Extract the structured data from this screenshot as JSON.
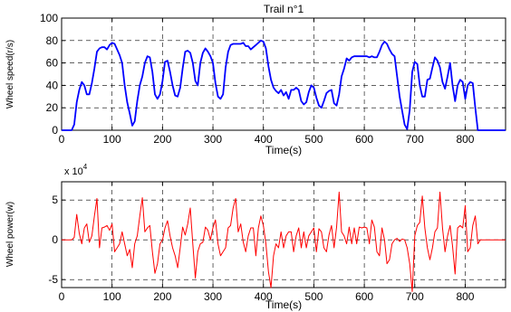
{
  "chart_data": [
    {
      "type": "line",
      "title": "Trail n°1",
      "xlabel": "Time(s)",
      "ylabel": "Wheel speed(r/s)",
      "xlim": [
        0,
        880
      ],
      "ylim": [
        0,
        100
      ],
      "xticks": [
        0,
        100,
        200,
        300,
        400,
        500,
        600,
        700,
        800
      ],
      "yticks": [
        0,
        20,
        40,
        60,
        80,
        100
      ],
      "grid": true,
      "series": [
        {
          "color": "#0000ff",
          "x": [
            0,
            10,
            15,
            20,
            25,
            30,
            35,
            40,
            45,
            50,
            55,
            60,
            65,
            70,
            75,
            80,
            85,
            90,
            95,
            100,
            105,
            110,
            115,
            120,
            125,
            130,
            135,
            140,
            145,
            150,
            155,
            160,
            165,
            170,
            175,
            180,
            185,
            190,
            195,
            200,
            205,
            210,
            215,
            220,
            225,
            230,
            235,
            240,
            245,
            250,
            255,
            260,
            265,
            270,
            275,
            280,
            285,
            290,
            295,
            300,
            305,
            310,
            315,
            320,
            325,
            330,
            335,
            340,
            345,
            350,
            355,
            360,
            365,
            370,
            375,
            380,
            385,
            390,
            395,
            400,
            405,
            410,
            415,
            420,
            425,
            430,
            435,
            440,
            445,
            450,
            455,
            460,
            465,
            470,
            475,
            480,
            485,
            490,
            495,
            500,
            505,
            510,
            515,
            520,
            525,
            530,
            535,
            540,
            545,
            550,
            555,
            560,
            565,
            570,
            575,
            580,
            585,
            590,
            595,
            600,
            605,
            610,
            615,
            620,
            625,
            630,
            635,
            640,
            645,
            650,
            655,
            660,
            665,
            670,
            675,
            680,
            685,
            690,
            695,
            700,
            705,
            710,
            715,
            720,
            725,
            730,
            735,
            740,
            745,
            750,
            755,
            760,
            765,
            770,
            775,
            780,
            785,
            790,
            795,
            800,
            805,
            810,
            815,
            820,
            825,
            830,
            840,
            850,
            860,
            870,
            880
          ],
          "y": [
            0,
            0,
            0,
            0,
            5,
            25,
            36,
            43,
            40,
            32,
            32,
            42,
            55,
            70,
            73,
            74,
            74,
            72,
            76,
            78,
            77,
            72,
            67,
            60,
            40,
            25,
            15,
            4,
            8,
            26,
            40,
            48,
            60,
            66,
            65,
            52,
            32,
            28,
            32,
            44,
            61,
            62,
            52,
            40,
            31,
            30,
            38,
            55,
            70,
            71,
            69,
            60,
            44,
            40,
            60,
            69,
            73,
            70,
            66,
            60,
            42,
            30,
            28,
            32,
            56,
            70,
            76,
            77,
            77,
            77,
            77,
            78,
            75,
            75,
            72,
            74,
            76,
            78,
            80,
            79,
            73,
            57,
            45,
            38,
            35,
            33,
            36,
            31,
            34,
            28,
            36,
            36,
            38,
            36,
            26,
            23,
            25,
            34,
            40,
            38,
            29,
            22,
            20,
            26,
            33,
            35,
            36,
            24,
            22,
            32,
            48,
            55,
            64,
            62,
            65,
            66,
            66,
            66,
            66,
            66,
            66,
            65,
            66,
            65,
            65,
            70,
            76,
            79,
            77,
            72,
            68,
            66,
            48,
            30,
            17,
            5,
            1,
            18,
            52,
            61,
            59,
            40,
            30,
            30,
            45,
            46,
            56,
            65,
            62,
            56,
            43,
            37,
            48,
            60,
            40,
            26,
            40,
            45,
            43,
            28,
            40,
            43,
            42,
            20,
            0,
            0,
            0,
            0,
            0,
            0,
            0
          ]
        }
      ]
    },
    {
      "type": "line",
      "title": "",
      "xlabel": "Time(s)",
      "ylabel": "Wheel power(w)",
      "y_multiplier_base": "x 10",
      "y_multiplier_exp": "4",
      "xlim": [
        0,
        880
      ],
      "ylim": [
        -6,
        7.3
      ],
      "xticks": [
        0,
        100,
        200,
        300,
        400,
        500,
        600,
        700,
        800
      ],
      "yticks": [
        -5,
        0,
        5
      ],
      "grid": true,
      "series": [
        {
          "color": "#ff0000",
          "x": [
            0,
            20,
            25,
            30,
            35,
            40,
            45,
            50,
            55,
            60,
            65,
            70,
            75,
            80,
            85,
            90,
            95,
            100,
            105,
            110,
            115,
            120,
            125,
            130,
            135,
            140,
            145,
            150,
            155,
            160,
            165,
            170,
            175,
            180,
            185,
            190,
            195,
            200,
            205,
            210,
            215,
            220,
            225,
            230,
            235,
            240,
            245,
            250,
            255,
            260,
            265,
            270,
            275,
            280,
            285,
            290,
            295,
            300,
            305,
            310,
            315,
            320,
            325,
            330,
            335,
            340,
            345,
            350,
            355,
            360,
            365,
            370,
            375,
            380,
            385,
            390,
            395,
            400,
            405,
            410,
            415,
            420,
            425,
            430,
            435,
            440,
            445,
            450,
            455,
            460,
            465,
            470,
            475,
            480,
            485,
            490,
            495,
            500,
            505,
            510,
            515,
            520,
            525,
            530,
            535,
            540,
            545,
            550,
            555,
            560,
            565,
            570,
            575,
            580,
            585,
            590,
            595,
            600,
            605,
            610,
            615,
            620,
            625,
            630,
            635,
            640,
            645,
            650,
            655,
            660,
            665,
            670,
            675,
            680,
            685,
            690,
            695,
            700,
            705,
            710,
            715,
            720,
            725,
            730,
            735,
            740,
            745,
            750,
            755,
            760,
            765,
            770,
            775,
            780,
            785,
            790,
            795,
            800,
            805,
            810,
            815,
            820,
            825,
            830,
            840,
            850,
            860,
            870,
            880
          ],
          "y": [
            0,
            0,
            0.3,
            3.2,
            0.8,
            -0.5,
            1.5,
            2,
            -0.3,
            0.5,
            3,
            5.2,
            -1,
            1.5,
            1.6,
            1.8,
            1.2,
            2,
            -1.5,
            -1,
            -0.5,
            1,
            -0.5,
            -2,
            -1.2,
            -3.5,
            -0.5,
            0.5,
            3,
            5.3,
            1,
            1.5,
            1.8,
            -1.5,
            -4.2,
            -3,
            -0.5,
            0,
            1.5,
            2.4,
            0.5,
            -1,
            -2,
            -3.5,
            -1,
            1.6,
            0.6,
            2,
            4,
            -0.5,
            -4.8,
            -1.5,
            -0.5,
            -0.3,
            1.6,
            1.2,
            0,
            1.5,
            2.5,
            -0.5,
            -2,
            -1.5,
            -1,
            1.5,
            1.8,
            4,
            5.2,
            1,
            2,
            -0.3,
            -1.5,
            0.5,
            1.5,
            1.5,
            -2,
            1.5,
            3,
            1.8,
            -0.5,
            -4,
            -6,
            -2,
            -0.5,
            -1,
            1,
            -1,
            0.5,
            1,
            1,
            -1.5,
            0.5,
            1.5,
            -1,
            1,
            -1,
            0.5,
            1,
            1.5,
            -1.5,
            1.4,
            1,
            -1,
            -1.5,
            0.6,
            1.8,
            -1,
            1.6,
            6,
            1,
            0.5,
            -0.5,
            1.6,
            -0.5,
            1.5,
            -0.5,
            1.6,
            1.5,
            1.6,
            1.5,
            -0.5,
            2.5,
            1.6,
            -1.5,
            -2,
            1.5,
            0,
            -3,
            -2.5,
            -0.5,
            0,
            0.2,
            -0.2,
            0.1,
            0,
            -1,
            -3,
            -6.5,
            0.5,
            1.8,
            2.2,
            5.5,
            1.5,
            -1,
            -2.5,
            -1,
            1,
            1.5,
            6,
            1.5,
            -1.5,
            0.5,
            1.8,
            -0.8,
            -4.3,
            1.5,
            1.8,
            1.5,
            4.3,
            -1.5,
            -1,
            1.8,
            3,
            -0.5,
            0,
            0,
            0,
            0,
            0,
            0
          ]
        }
      ]
    }
  ]
}
